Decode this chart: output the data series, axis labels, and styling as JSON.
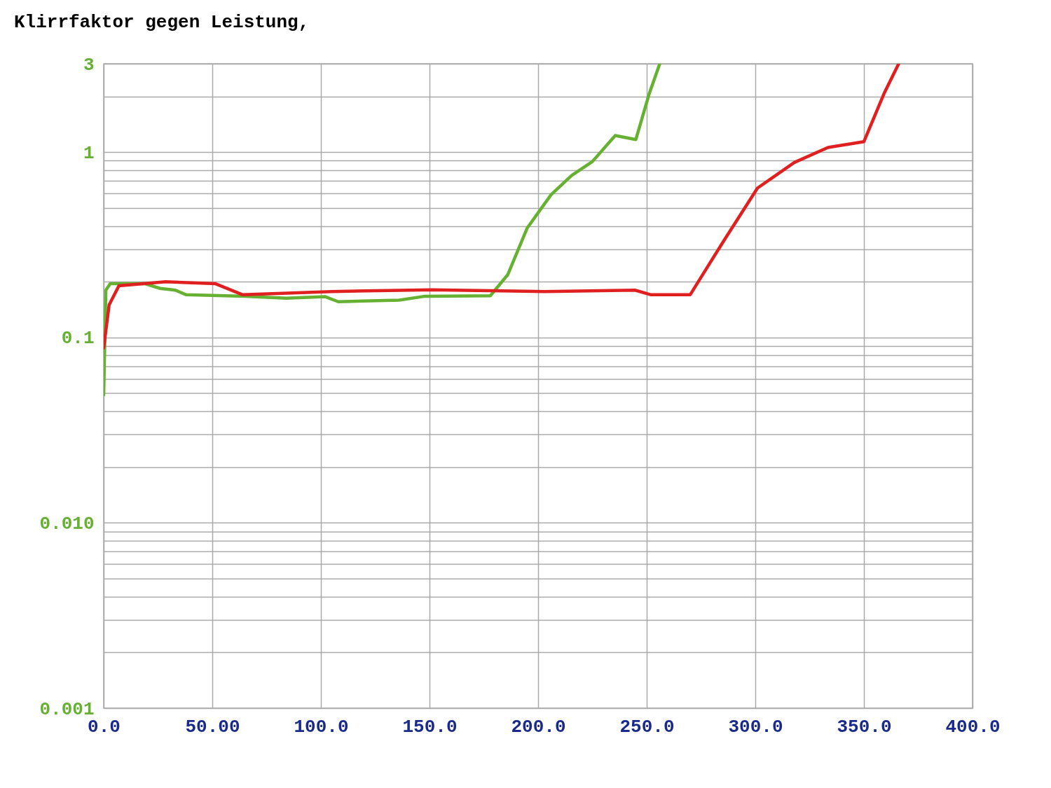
{
  "chart_data": {
    "type": "line",
    "title": "Klirrfaktor gegen Leistung,",
    "log": true,
    "grid": true,
    "xlim": [
      0,
      400
    ],
    "xticks": [
      {
        "value": 0,
        "label": "0.0"
      },
      {
        "value": 50,
        "label": "50.00"
      },
      {
        "value": 100,
        "label": "100.0"
      },
      {
        "value": 150,
        "label": "150.0"
      },
      {
        "value": 200,
        "label": "200.0"
      },
      {
        "value": 250,
        "label": "250.0"
      },
      {
        "value": 300,
        "label": "300.0"
      },
      {
        "value": 350,
        "label": "350.0"
      },
      {
        "value": 400,
        "label": "400.0"
      }
    ],
    "ylim": [
      0.001,
      3
    ],
    "yticks": [
      {
        "value": 0.001,
        "label": "0.001"
      },
      {
        "value": 0.002,
        "label": null
      },
      {
        "value": 0.003,
        "label": null
      },
      {
        "value": 0.004,
        "label": null
      },
      {
        "value": 0.005,
        "label": null
      },
      {
        "value": 0.006,
        "label": null
      },
      {
        "value": 0.007,
        "label": null
      },
      {
        "value": 0.008,
        "label": null
      },
      {
        "value": 0.009,
        "label": null
      },
      {
        "value": 0.01,
        "label": "0.010"
      },
      {
        "value": 0.02,
        "label": null
      },
      {
        "value": 0.03,
        "label": null
      },
      {
        "value": 0.04,
        "label": null
      },
      {
        "value": 0.05,
        "label": null
      },
      {
        "value": 0.06,
        "label": null
      },
      {
        "value": 0.07,
        "label": null
      },
      {
        "value": 0.08,
        "label": null
      },
      {
        "value": 0.09,
        "label": null
      },
      0.1,
      {
        "value": 0.2,
        "label": null
      },
      {
        "value": 0.3,
        "label": null
      },
      {
        "value": 0.4,
        "label": null
      },
      {
        "value": 0.5,
        "label": null
      },
      {
        "value": 0.6,
        "label": null
      },
      {
        "value": 0.7,
        "label": null
      },
      {
        "value": 0.8,
        "label": null
      },
      {
        "value": 0.9,
        "label": null
      },
      1,
      {
        "value": 2,
        "label": null
      },
      3
    ],
    "series": [
      {
        "color": "#e02020",
        "x": [
          0,
          2.5,
          7,
          28.5,
          51.5,
          64,
          105,
          151,
          203,
          244.6,
          252,
          270,
          286,
          301,
          318,
          333.5,
          350,
          359.5,
          366
        ],
        "values": [
          0.088,
          0.15,
          0.19,
          0.2,
          0.195,
          0.17,
          0.177,
          0.181,
          0.177,
          0.18,
          0.17,
          0.17,
          0.34,
          0.64,
          0.88,
          1.06,
          1.14,
          2.1,
          3
        ]
      },
      {
        "color": "#66b032",
        "x": [
          0,
          1,
          3,
          19,
          26,
          33,
          38,
          65,
          84,
          102,
          108,
          136,
          148,
          178,
          186,
          195,
          206,
          215.5,
          225,
          235.5,
          245,
          251,
          256
        ],
        "values": [
          0.049,
          0.18,
          0.195,
          0.195,
          0.184,
          0.18,
          0.17,
          0.167,
          0.163,
          0.166,
          0.156,
          0.159,
          0.167,
          0.168,
          0.218,
          0.39,
          0.59,
          0.75,
          0.89,
          1.23,
          1.17,
          2.04,
          3
        ]
      }
    ]
  }
}
